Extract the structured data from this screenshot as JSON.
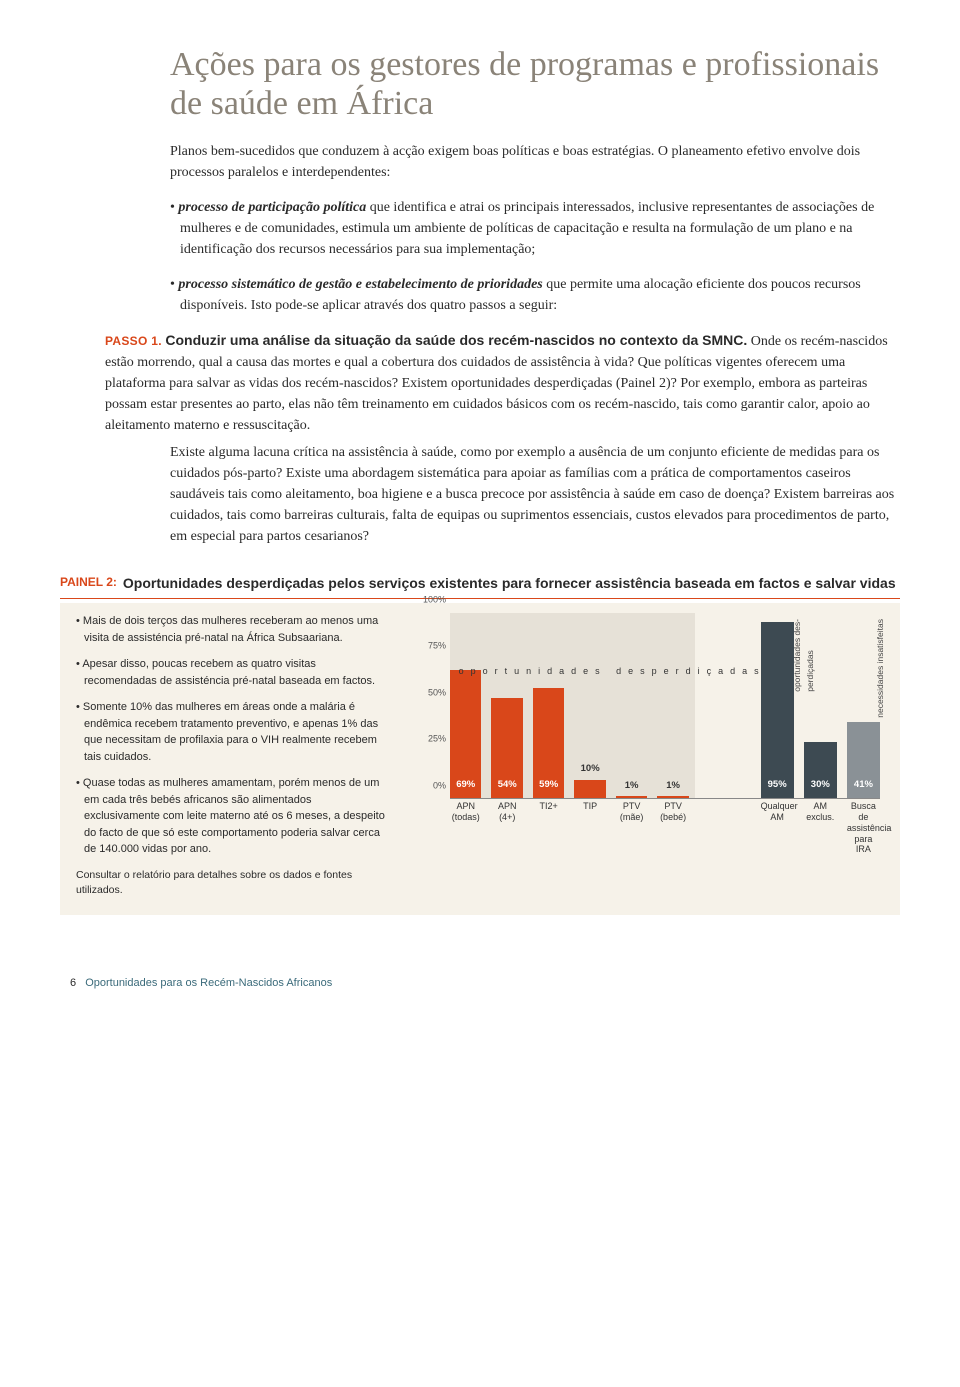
{
  "title": "Ações para os gestores de programas e profissionais de saúde em África",
  "intro": "Planos bem-sucedidos que conduzem à acção exigem boas políticas e boas estratégias. O planeamento efetivo envolve dois processos paralelos e interdependentes:",
  "bullet1_lead": "processo de participação política",
  "bullet1_body": " que identifica e atrai os principais interessados, inclusive representantes de associações de mulheres e de comunidades, estimula um ambiente de políticas de capacitação e resulta na formulação de um plano e na identificação dos recursos necessários para sua implementação;",
  "bullet2_lead": "processo sistemático de gestão e estabelecimento de prioridades",
  "bullet2_body": " que permite uma alocação eficiente dos poucos recursos disponíveis. Isto pode-se aplicar através dos quatro passos a seguir:",
  "passo_label": "PASSO 1.",
  "passo_title": "Conduzir uma análise da situação da saúde dos recém-nascidos no contexto da SMNC.",
  "passo_body1": " Onde os recém-nascidos estão morrendo, qual a causa das mortes e qual a cobertura dos cuidados de assistência à vida? Que políticas vigentes oferecem uma plataforma para salvar as vidas dos recém-nascidos? Existem oportunidades desperdiçadas (Painel 2)? Por exemplo, embora as parteiras possam estar presentes ao parto, elas não têm treinamento em cuidados básicos com os recém-nascido, tais como garantir calor, apoio ao aleitamento materno e ressuscitação.",
  "passo_body2": "Existe alguma lacuna crítica na assistência à saúde, como por exemplo a ausência de um conjunto eficiente de medidas para os cuidados pós-parto? Existe uma abordagem sistemática para apoiar as famílias com a prática de comportamentos caseiros saudáveis tais como aleitamento, boa higiene e a busca precoce por assistência à saúde em caso de doença? Existem barreiras aos cuidados, tais como barreiras culturais, falta de equipas ou suprimentos essenciais, custos elevados para procedimentos de parto, em especial para partos cesarianos?",
  "panel_label": "PAINEL 2:",
  "panel_title": "Oportunidades desperdiçadas pelos serviços existentes para fornecer assistência baseada em factos e salvar vidas",
  "notes": [
    "Mais de dois terços das mulheres receberam ao menos uma visita de assisténcia pré-natal na África Subsaariana.",
    "Apesar disso, poucas recebem as quatro visitas recomendadas de assisténcia pré-natal baseada em factos.",
    "Somente 10% das mulheres em áreas onde a malária é endêmica recebem tratamento preventivo, e apenas 1% das que necessitam de profilaxia para o VIH realmente recebem tais cuidados.",
    "Quase todas as mulheres amamentam, porém menos de um em cada três bebés africanos são alimentados exclusivamente com leite materno até os 6 meses, a despeito do facto de que só este comportamento poderia salvar cerca de 140.000 vidas por ano."
  ],
  "panel_foot": "Consultar o relatório para detalhes sobre os dados e fontes utilizados.",
  "chart": {
    "ylim": [
      0,
      100
    ],
    "yticks": [
      0,
      25,
      50,
      75,
      100
    ],
    "ytick_labels": [
      "0%",
      "25%",
      "50%",
      "75%",
      "100%"
    ],
    "group1": [
      {
        "label": "APN\n(todas)",
        "value": 69,
        "text": "69%",
        "color": "#d9471a"
      },
      {
        "label": "APN\n(4+)",
        "value": 54,
        "text": "54%",
        "color": "#d9471a"
      },
      {
        "label": "TI2+",
        "value": 59,
        "text": "59%",
        "color": "#d9471a"
      },
      {
        "label": "TIP",
        "value": 10,
        "text": "10%",
        "color": "#d9471a"
      },
      {
        "label": "PTV\n(mãe)",
        "value": 1,
        "text": "1%",
        "color": "#d9471a"
      },
      {
        "label": "PTV\n(bebé)",
        "value": 1,
        "text": "1%",
        "color": "#d9471a"
      }
    ],
    "group2": [
      {
        "label": "Qualquer AM",
        "value": 95,
        "text": "95%",
        "color": "#3d4a52"
      },
      {
        "label": "AM exclus.",
        "value": 30,
        "text": "30%",
        "color": "#3d4a52"
      },
      {
        "label": "Busca de\nassistência\npara IRA",
        "value": 41,
        "text": "41%",
        "color": "#8a9196"
      }
    ],
    "overlay": "oportunidades desperdiçadas",
    "side1": "oportunidades des-\nperdiçadas",
    "side2": "necessidades insatisfeitas",
    "bg_tint": "#c9c3b6"
  },
  "footer_num": "6",
  "footer_text": "Oportunidades para os Recém-Nascidos Africanos"
}
